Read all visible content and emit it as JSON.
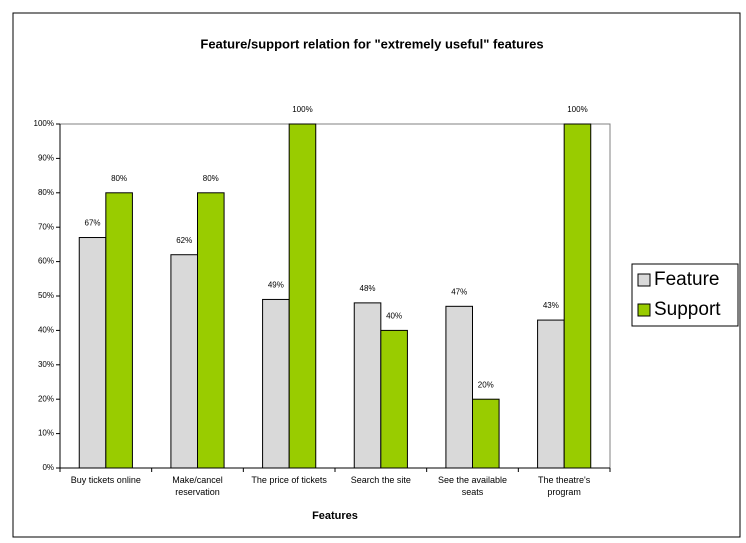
{
  "chart_data": {
    "type": "bar",
    "title": "Feature/support relation for \"extremely useful\" features",
    "x_label": "Features",
    "categories": [
      "Buy tickets online",
      "Make/cancel reservation",
      "The price of tickets",
      "Search the site",
      "See the available seats",
      "The theatre's program"
    ],
    "series": [
      {
        "name": "Feature",
        "color": "#d9d9d9",
        "values": [
          67,
          62,
          49,
          48,
          47,
          43
        ],
        "value_labels": [
          "67%",
          "62%",
          "49%",
          "48%",
          "47%",
          "43%"
        ]
      },
      {
        "name": "Support",
        "color": "#99cc00",
        "values": [
          80,
          80,
          100,
          40,
          20,
          100
        ],
        "value_labels": [
          "80%",
          "80%",
          "100%",
          "40%",
          "20%",
          "100%"
        ]
      }
    ],
    "ylim": [
      0,
      100
    ],
    "yticks": [
      {
        "value": 0,
        "label": "0%"
      },
      {
        "value": 10,
        "label": "10%"
      },
      {
        "value": 20,
        "label": "20%"
      },
      {
        "value": 30,
        "label": "30%"
      },
      {
        "value": 40,
        "label": "40%"
      },
      {
        "value": 50,
        "label": "50%"
      },
      {
        "value": 60,
        "label": "60%"
      },
      {
        "value": 70,
        "label": "70%"
      },
      {
        "value": 80,
        "label": "80%"
      },
      {
        "value": 90,
        "label": "90%"
      },
      {
        "value": 100,
        "label": "100%"
      }
    ],
    "legend": "right"
  }
}
